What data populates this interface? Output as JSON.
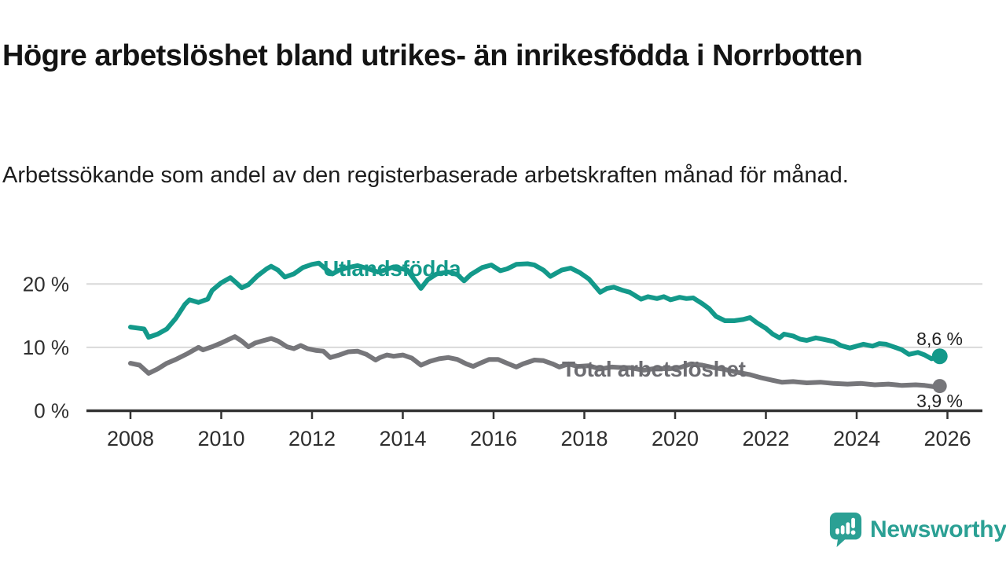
{
  "header": {
    "title": "Högre arbetslöshet bland utrikes- än inrikesfödda i Norrbotten",
    "subtitle": "Arbetssökande som andel av den registerbaserade arbetskraften månad för månad."
  },
  "branding": {
    "name": "Newsworthy",
    "logo_icon": "speech-bubble-bar-chart-exclamation-icon",
    "color": "#2ba094"
  },
  "colors": {
    "background": "#ffffff",
    "grid": "#d9d9d9",
    "axis": "#333333",
    "axis_text": "#2e2e2e",
    "title_text": "#141414",
    "foreign_born": "#13998a",
    "total": "#76767a"
  },
  "chart_data": {
    "type": "line",
    "grid": "horizontal",
    "legend": "inline-labels-on-lines",
    "x_axis": {
      "ticks": [
        "2008",
        "2010",
        "2012",
        "2014",
        "2016",
        "2018",
        "2020",
        "2022",
        "2024",
        "2026"
      ],
      "range_years": [
        2007.0,
        2026.8
      ]
    },
    "y_axis": {
      "unit": "%",
      "range": [
        0,
        26
      ],
      "ticks": [
        {
          "value": 20,
          "label": "20 %"
        },
        {
          "value": 10,
          "label": "10 %"
        },
        {
          "value": 0,
          "label": "0 %"
        }
      ]
    },
    "series": [
      {
        "name": "Utlandsfödda",
        "color": "#13998a",
        "end_label": "8,6 %",
        "end_value": 8.6,
        "points": [
          [
            2008.0,
            13.2
          ],
          [
            2008.2,
            13.0
          ],
          [
            2008.3,
            12.9
          ],
          [
            2008.4,
            11.6
          ],
          [
            2008.6,
            12.1
          ],
          [
            2008.8,
            12.9
          ],
          [
            2009.0,
            14.6
          ],
          [
            2009.2,
            16.8
          ],
          [
            2009.3,
            17.5
          ],
          [
            2009.5,
            17.1
          ],
          [
            2009.7,
            17.6
          ],
          [
            2009.8,
            19.0
          ],
          [
            2010.0,
            20.2
          ],
          [
            2010.2,
            21.0
          ],
          [
            2010.3,
            20.4
          ],
          [
            2010.45,
            19.4
          ],
          [
            2010.6,
            19.9
          ],
          [
            2010.8,
            21.3
          ],
          [
            2011.0,
            22.4
          ],
          [
            2011.1,
            22.8
          ],
          [
            2011.25,
            22.2
          ],
          [
            2011.4,
            21.1
          ],
          [
            2011.6,
            21.6
          ],
          [
            2011.8,
            22.6
          ],
          [
            2012.0,
            23.1
          ],
          [
            2012.15,
            23.3
          ],
          [
            2012.3,
            22.4
          ],
          [
            2012.45,
            21.6
          ],
          [
            2012.6,
            22.2
          ],
          [
            2012.8,
            22.6
          ],
          [
            2013.0,
            22.9
          ],
          [
            2013.25,
            22.4
          ],
          [
            2013.45,
            21.9
          ],
          [
            2013.6,
            22.2
          ],
          [
            2013.8,
            22.7
          ],
          [
            2014.1,
            22.2
          ],
          [
            2014.4,
            19.3
          ],
          [
            2014.55,
            20.7
          ],
          [
            2014.75,
            21.6
          ],
          [
            2015.0,
            21.9
          ],
          [
            2015.2,
            21.5
          ],
          [
            2015.35,
            20.5
          ],
          [
            2015.5,
            21.5
          ],
          [
            2015.75,
            22.6
          ],
          [
            2015.95,
            23.0
          ],
          [
            2016.15,
            22.1
          ],
          [
            2016.3,
            22.4
          ],
          [
            2016.5,
            23.1
          ],
          [
            2016.75,
            23.2
          ],
          [
            2016.9,
            23.0
          ],
          [
            2017.1,
            22.2
          ],
          [
            2017.25,
            21.2
          ],
          [
            2017.5,
            22.2
          ],
          [
            2017.7,
            22.5
          ],
          [
            2017.9,
            21.8
          ],
          [
            2018.1,
            20.8
          ],
          [
            2018.35,
            18.7
          ],
          [
            2018.5,
            19.3
          ],
          [
            2018.65,
            19.5
          ],
          [
            2018.85,
            19.0
          ],
          [
            2019.0,
            18.7
          ],
          [
            2019.25,
            17.6
          ],
          [
            2019.4,
            18.0
          ],
          [
            2019.6,
            17.7
          ],
          [
            2019.75,
            18.0
          ],
          [
            2019.9,
            17.5
          ],
          [
            2020.1,
            17.9
          ],
          [
            2020.25,
            17.7
          ],
          [
            2020.4,
            17.8
          ],
          [
            2020.6,
            16.9
          ],
          [
            2020.75,
            16.1
          ],
          [
            2020.9,
            14.9
          ],
          [
            2021.1,
            14.2
          ],
          [
            2021.3,
            14.2
          ],
          [
            2021.5,
            14.4
          ],
          [
            2021.65,
            14.7
          ],
          [
            2021.8,
            13.9
          ],
          [
            2022.0,
            13.0
          ],
          [
            2022.15,
            12.1
          ],
          [
            2022.3,
            11.5
          ],
          [
            2022.4,
            12.1
          ],
          [
            2022.6,
            11.8
          ],
          [
            2022.75,
            11.3
          ],
          [
            2022.9,
            11.1
          ],
          [
            2023.1,
            11.5
          ],
          [
            2023.25,
            11.3
          ],
          [
            2023.5,
            10.9
          ],
          [
            2023.65,
            10.3
          ],
          [
            2023.85,
            9.9
          ],
          [
            2024.0,
            10.2
          ],
          [
            2024.15,
            10.5
          ],
          [
            2024.35,
            10.2
          ],
          [
            2024.5,
            10.6
          ],
          [
            2024.65,
            10.5
          ],
          [
            2024.85,
            10.0
          ],
          [
            2025.0,
            9.6
          ],
          [
            2025.15,
            8.9
          ],
          [
            2025.35,
            9.2
          ],
          [
            2025.5,
            8.8
          ],
          [
            2025.65,
            8.2
          ],
          [
            2025.83,
            8.6
          ]
        ]
      },
      {
        "name": "Total arbetslöshet",
        "color": "#76767a",
        "end_label": "3,9 %",
        "end_value": 3.9,
        "points": [
          [
            2008.0,
            7.5
          ],
          [
            2008.2,
            7.2
          ],
          [
            2008.4,
            5.9
          ],
          [
            2008.6,
            6.6
          ],
          [
            2008.8,
            7.5
          ],
          [
            2009.0,
            8.1
          ],
          [
            2009.25,
            9.0
          ],
          [
            2009.5,
            10.0
          ],
          [
            2009.6,
            9.6
          ],
          [
            2009.8,
            10.1
          ],
          [
            2010.0,
            10.7
          ],
          [
            2010.15,
            11.2
          ],
          [
            2010.3,
            11.7
          ],
          [
            2010.45,
            11.0
          ],
          [
            2010.6,
            10.1
          ],
          [
            2010.75,
            10.7
          ],
          [
            2010.9,
            11.0
          ],
          [
            2011.1,
            11.4
          ],
          [
            2011.25,
            11.0
          ],
          [
            2011.45,
            10.1
          ],
          [
            2011.6,
            9.8
          ],
          [
            2011.75,
            10.3
          ],
          [
            2011.9,
            9.8
          ],
          [
            2012.1,
            9.5
          ],
          [
            2012.25,
            9.4
          ],
          [
            2012.4,
            8.4
          ],
          [
            2012.6,
            8.8
          ],
          [
            2012.8,
            9.3
          ],
          [
            2013.0,
            9.4
          ],
          [
            2013.2,
            8.9
          ],
          [
            2013.4,
            8.0
          ],
          [
            2013.5,
            8.4
          ],
          [
            2013.65,
            8.8
          ],
          [
            2013.8,
            8.6
          ],
          [
            2014.0,
            8.8
          ],
          [
            2014.2,
            8.3
          ],
          [
            2014.4,
            7.2
          ],
          [
            2014.6,
            7.8
          ],
          [
            2014.8,
            8.2
          ],
          [
            2015.0,
            8.4
          ],
          [
            2015.2,
            8.1
          ],
          [
            2015.4,
            7.4
          ],
          [
            2015.55,
            7.0
          ],
          [
            2015.7,
            7.5
          ],
          [
            2015.9,
            8.1
          ],
          [
            2016.1,
            8.1
          ],
          [
            2016.3,
            7.5
          ],
          [
            2016.5,
            6.9
          ],
          [
            2016.65,
            7.4
          ],
          [
            2016.9,
            8.0
          ],
          [
            2017.1,
            7.9
          ],
          [
            2017.3,
            7.4
          ],
          [
            2017.45,
            6.9
          ],
          [
            2017.65,
            7.4
          ],
          [
            2017.85,
            7.0
          ],
          [
            2018.1,
            7.1
          ],
          [
            2018.35,
            6.6
          ],
          [
            2018.6,
            6.9
          ],
          [
            2018.85,
            6.8
          ],
          [
            2019.0,
            6.8
          ],
          [
            2019.3,
            6.4
          ],
          [
            2019.6,
            6.7
          ],
          [
            2019.85,
            6.6
          ],
          [
            2020.1,
            6.8
          ],
          [
            2020.35,
            7.4
          ],
          [
            2020.6,
            7.2
          ],
          [
            2020.85,
            6.8
          ],
          [
            2021.1,
            6.5
          ],
          [
            2021.35,
            6.1
          ],
          [
            2021.65,
            5.7
          ],
          [
            2021.9,
            5.2
          ],
          [
            2022.15,
            4.8
          ],
          [
            2022.35,
            4.5
          ],
          [
            2022.6,
            4.6
          ],
          [
            2022.9,
            4.4
          ],
          [
            2023.2,
            4.5
          ],
          [
            2023.5,
            4.3
          ],
          [
            2023.8,
            4.2
          ],
          [
            2024.1,
            4.3
          ],
          [
            2024.4,
            4.1
          ],
          [
            2024.7,
            4.2
          ],
          [
            2025.0,
            4.0
          ],
          [
            2025.3,
            4.1
          ],
          [
            2025.5,
            4.0
          ],
          [
            2025.7,
            3.8
          ],
          [
            2025.83,
            3.9
          ]
        ]
      }
    ]
  }
}
